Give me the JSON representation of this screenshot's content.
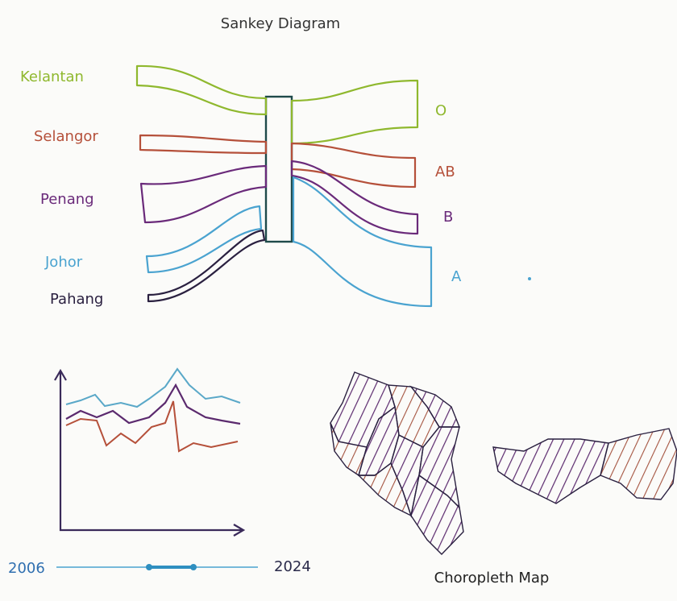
{
  "sankey": {
    "title": "Sankey Diagram",
    "sources": [
      "Kelantan",
      "Selangor",
      "Penang",
      "Johor",
      "Pahang"
    ],
    "targets": [
      "O",
      "AB",
      "B",
      "A"
    ]
  },
  "timeline": {
    "start": "2006",
    "end": "2024"
  },
  "map": {
    "title": "Choropleth Map"
  }
}
